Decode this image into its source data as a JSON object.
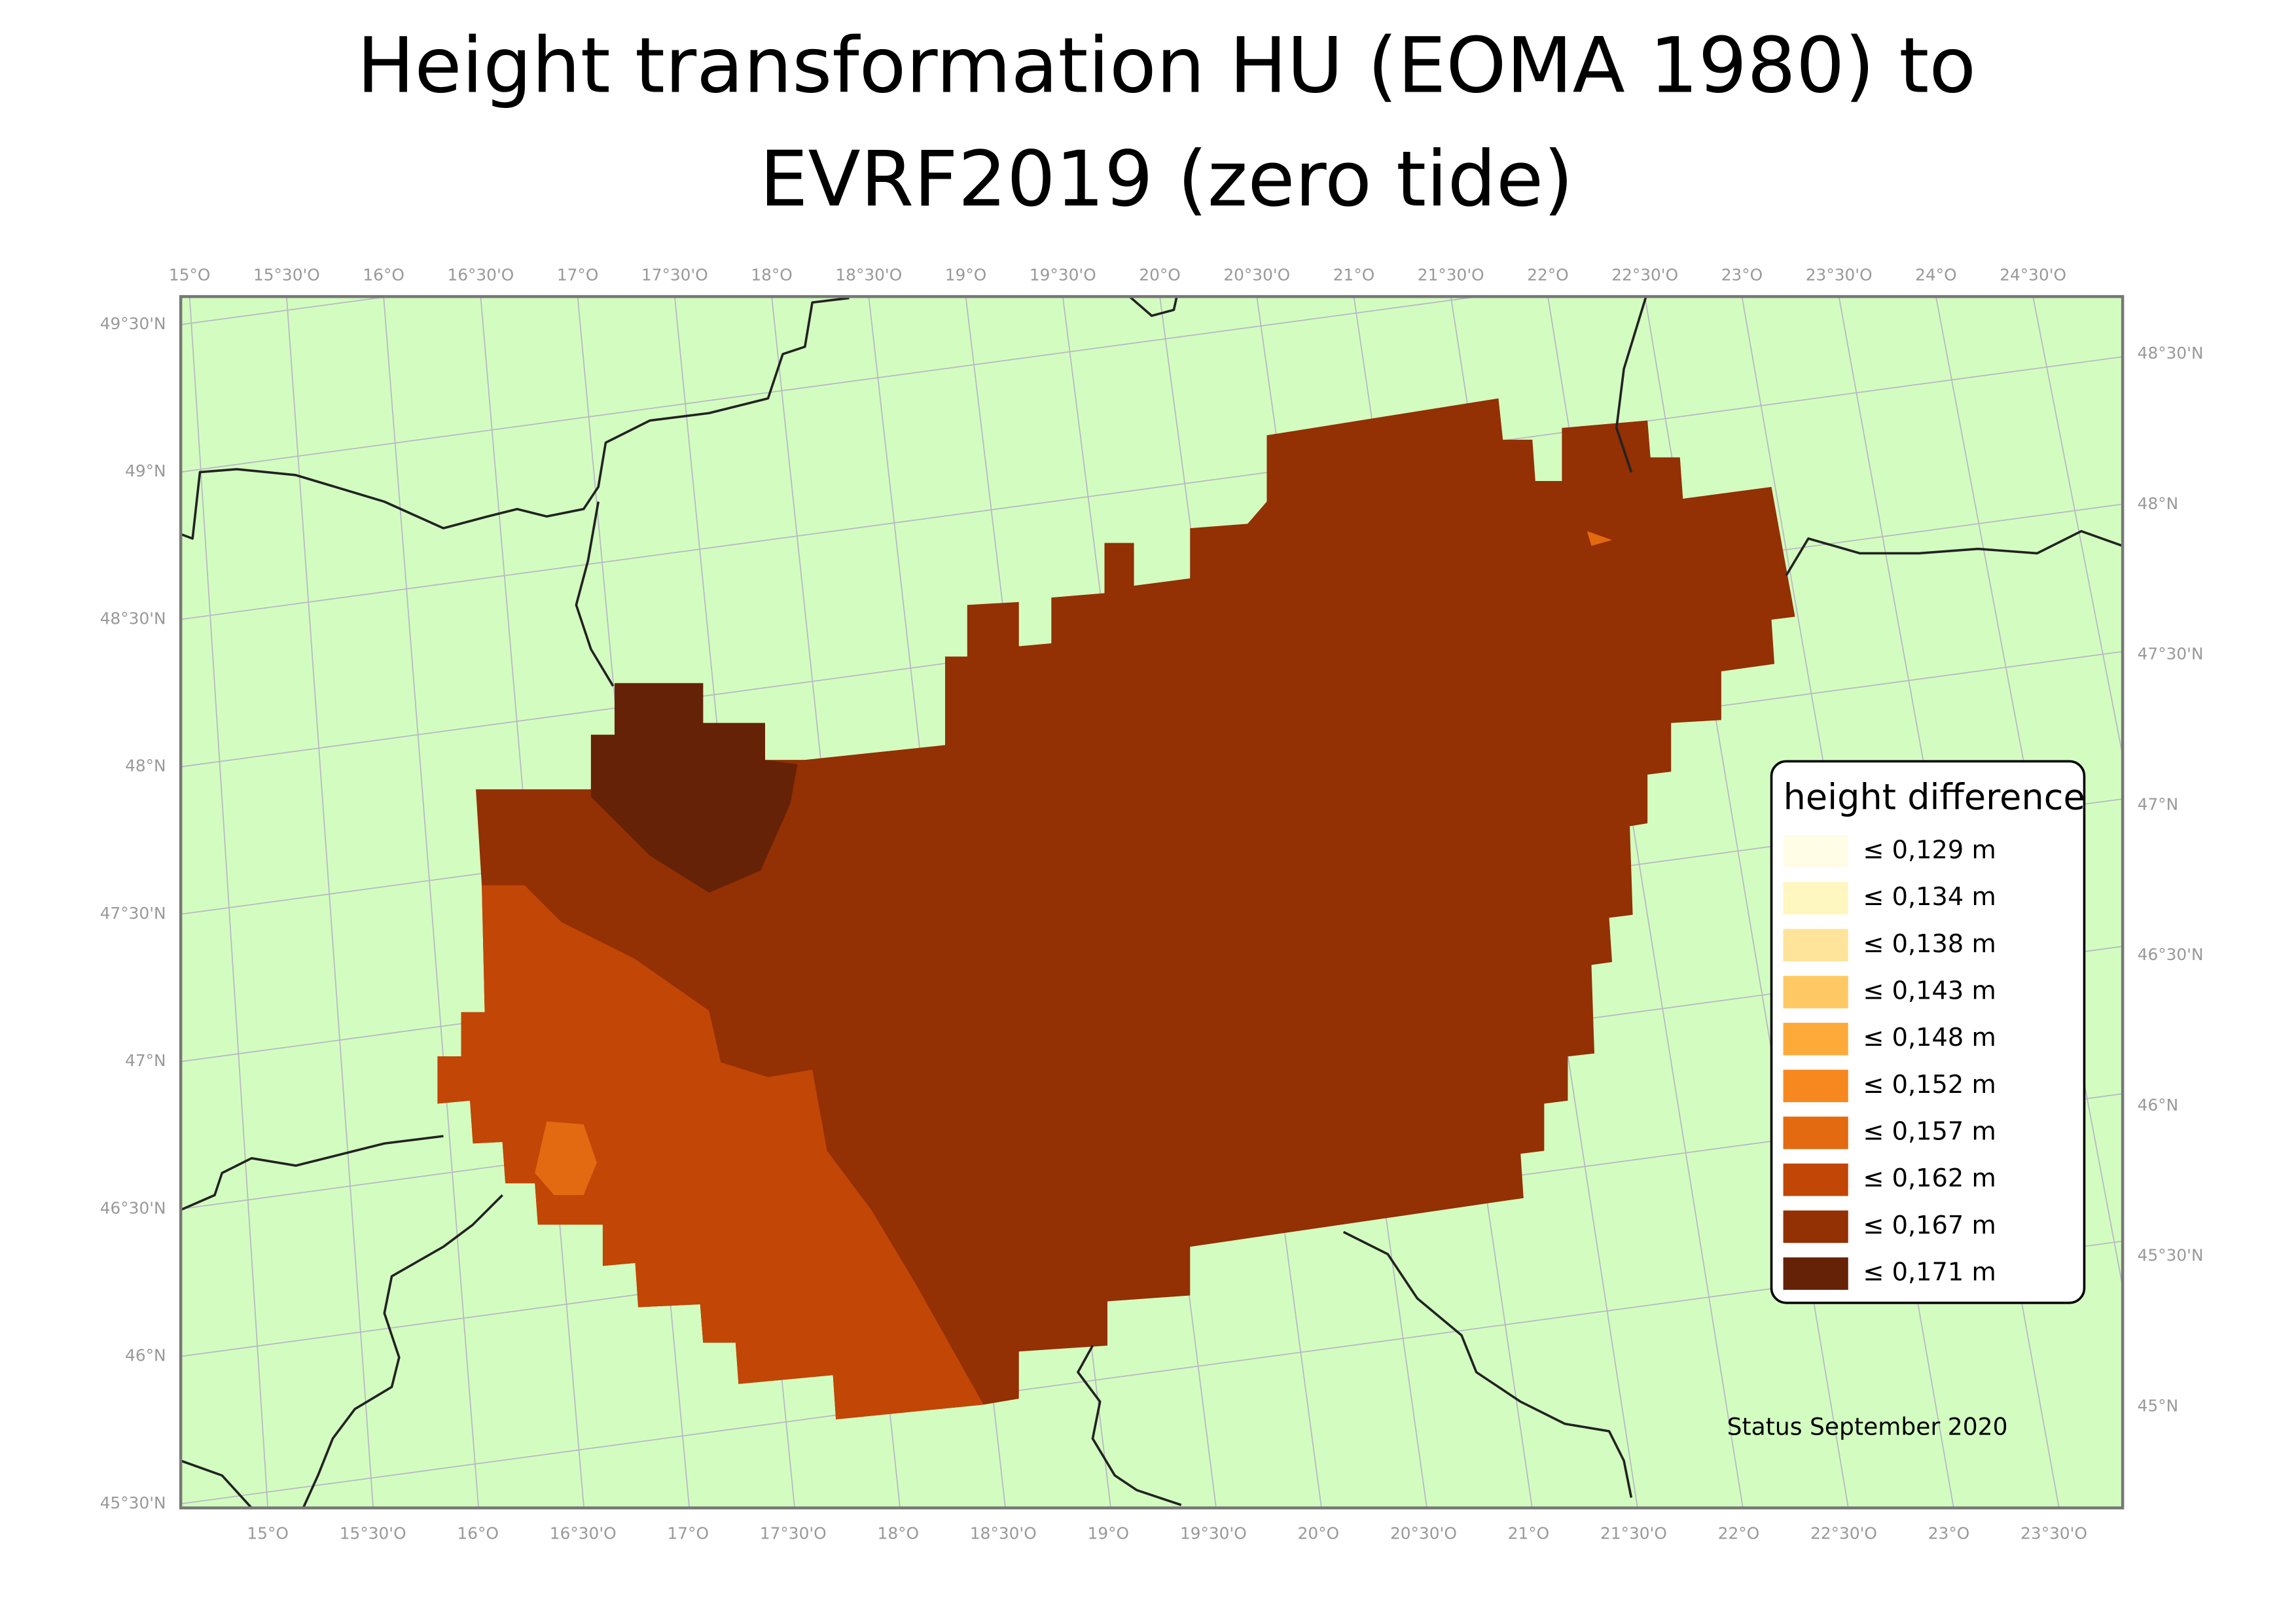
{
  "title_lines": [
    "Height transformation HU (EOMA 1980) to",
    "EVRF2019 (zero tide)"
  ],
  "graticule": {
    "top": [
      "15°O",
      "15°30'O",
      "16°O",
      "16°30'O",
      "17°O",
      "17°30'O",
      "18°O",
      "18°30'O",
      "19°O",
      "19°30'O",
      "20°O",
      "20°30'O",
      "21°O",
      "21°30'O",
      "22°O",
      "22°30'O",
      "23°O",
      "23°30'O",
      "24°O",
      "24°30'O"
    ],
    "bottom": [
      "15°O",
      "15°30'O",
      "16°O",
      "16°30'O",
      "17°O",
      "17°30'O",
      "18°O",
      "18°30'O",
      "19°O",
      "19°30'O",
      "20°O",
      "20°30'O",
      "21°O",
      "21°30'O",
      "22°O",
      "22°30'O",
      "23°O",
      "23°30'O"
    ],
    "left": [
      "49°30'N",
      "49°N",
      "48°30'N",
      "48°N",
      "47°30'N",
      "47°N",
      "46°30'N",
      "46°N",
      "45°30'N"
    ],
    "right": [
      "48°30'N",
      "48°N",
      "47°30'N",
      "47°N",
      "46°30'N",
      "46°N",
      "45°30'N",
      "45°N"
    ]
  },
  "legend": {
    "title": "height difference",
    "items": [
      {
        "label": "≤ 0,129 m",
        "color": "#fffde6"
      },
      {
        "label": "≤ 0,134 m",
        "color": "#fff6c0"
      },
      {
        "label": "≤ 0,138 m",
        "color": "#fee49a"
      },
      {
        "label": "≤ 0,143 m",
        "color": "#fec964"
      },
      {
        "label": "≤ 0,148 m",
        "color": "#fdaa3a"
      },
      {
        "label": "≤ 0,152 m",
        "color": "#f7881f"
      },
      {
        "label": "≤ 0,157 m",
        "color": "#e36a10"
      },
      {
        "label": "≤ 0,162 m",
        "color": "#c24606"
      },
      {
        "label": "≤ 0,167 m",
        "color": "#933004"
      },
      {
        "label": "≤ 0,171 m",
        "color": "#662206"
      }
    ]
  },
  "status": "Status September 2020"
}
